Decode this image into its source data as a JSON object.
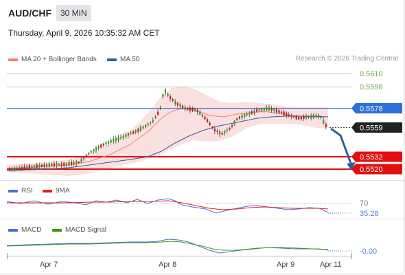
{
  "header": {
    "pair": "AUD/CHF",
    "timeframe": "30 MIN",
    "datetime": "Thursday, April 9, 2026 10:35:32 AM CET"
  },
  "legend": {
    "main": [
      {
        "label": "MA 20 + Bollinger Bands",
        "color": "#f08080"
      },
      {
        "label": "MA 50",
        "color": "#2f5f9e"
      }
    ],
    "rsi": [
      {
        "label": "RSI",
        "color": "#4a6fd0"
      },
      {
        "label": "9MA",
        "color": "#e02020"
      }
    ],
    "macd": [
      {
        "label": "MACD",
        "color": "#4a6fd0"
      },
      {
        "label": "MACD Signal",
        "color": "#3a9a1a"
      }
    ]
  },
  "credit": "Research © 2026 Trading Central",
  "price_levels": {
    "resistance_2": "0.5610",
    "resistance_1": "0.5598",
    "pivot": "0.5578",
    "current": "0.5559",
    "support_1": "0.5532",
    "support_2": "0.5520"
  },
  "rsi_labels": {
    "level": "70",
    "value": "35.28"
  },
  "macd_labels": {
    "value": "-0.00"
  },
  "x_axis": [
    "Apr 7",
    "Apr 8",
    "Apr 9",
    "Apr 11"
  ],
  "colors": {
    "resistance": "#8fc56a",
    "pivot": "#2e6fd8",
    "support": "#e01010",
    "current": "#222222",
    "bullish": "#3a9a1a",
    "bearish": "#c02020",
    "bollinger": "#f4c4c4",
    "arrow": "#2f5f9e"
  }
}
